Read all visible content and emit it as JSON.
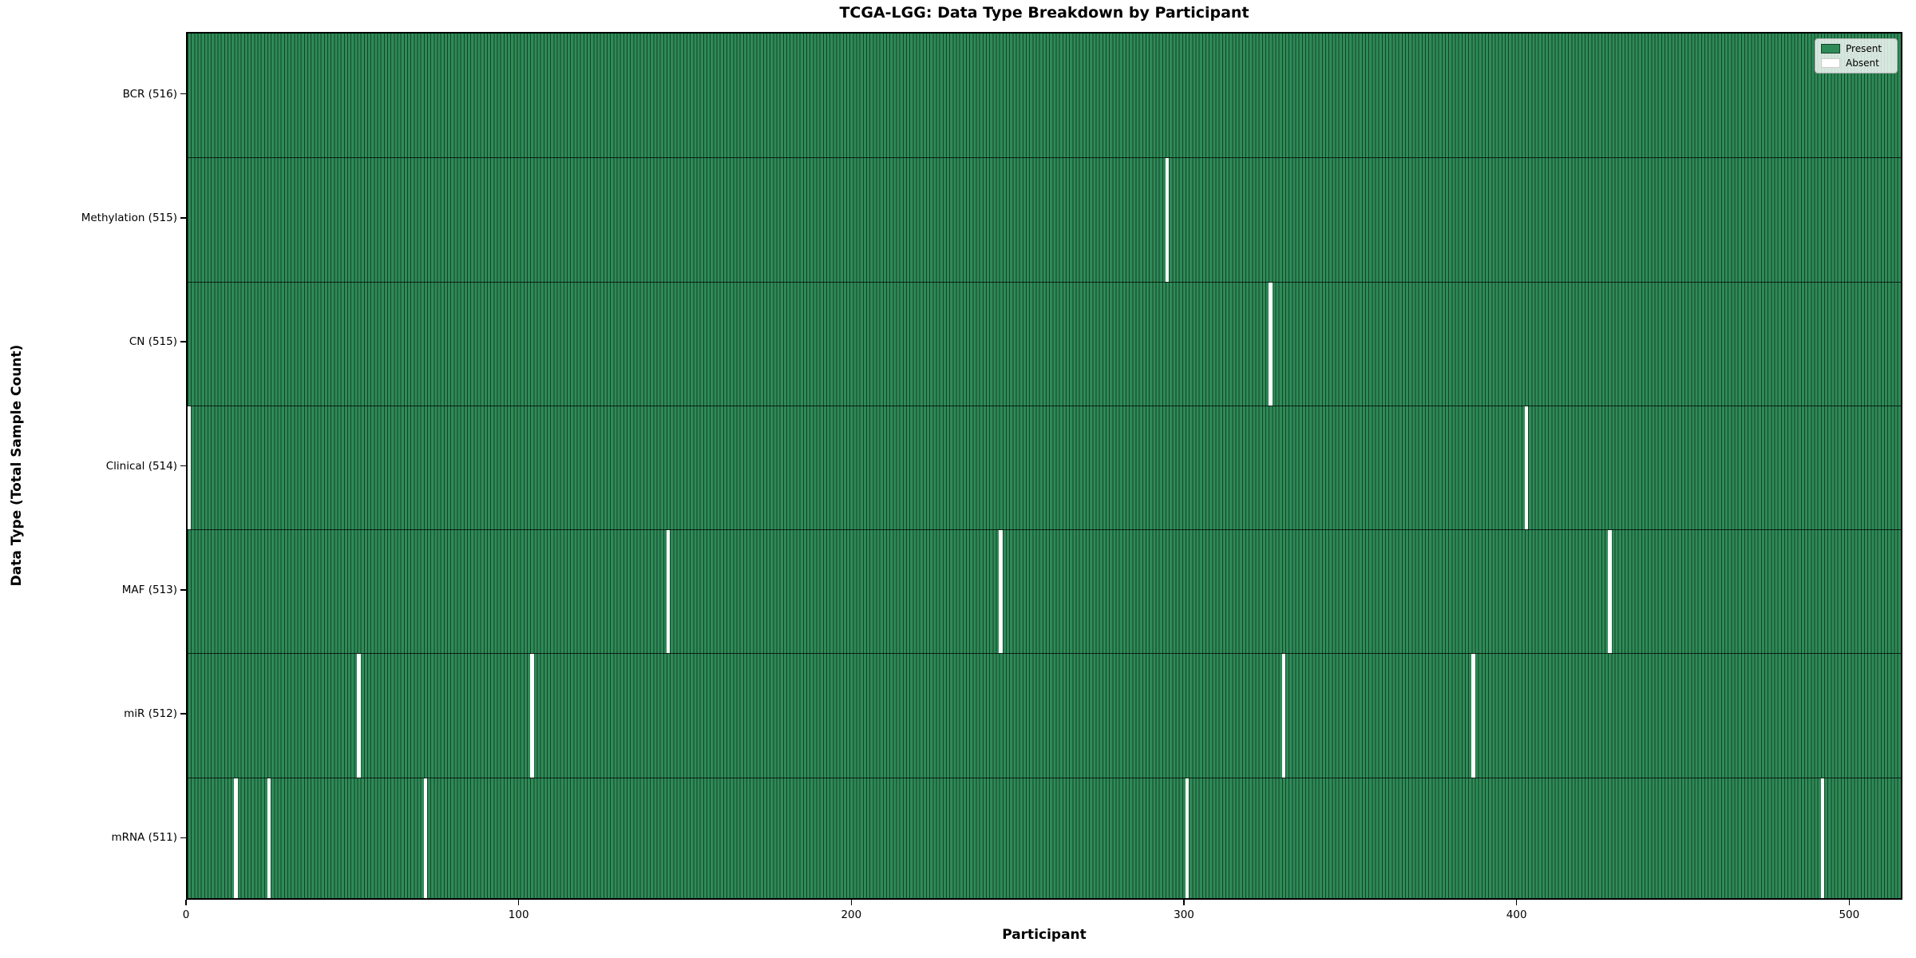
{
  "title": "TCGA-LGG: Data Type Breakdown by Participant",
  "xlabel": "Participant",
  "ylabel": "Data Type (Total Sample Count)",
  "legend": {
    "present_label": "Present",
    "absent_label": "Absent"
  },
  "colors": {
    "present": "#2e8b57",
    "present_edge": "#16422a",
    "absent": "#ffffff",
    "absent_edge": "#cccccc"
  },
  "chart_data": {
    "type": "heatmap",
    "title": "TCGA-LGG: Data Type Breakdown by Participant",
    "xlabel": "Participant",
    "ylabel": "Data Type (Total Sample Count)",
    "legend": [
      "Present",
      "Absent"
    ],
    "legend_position": "upper right",
    "n_participants": 516,
    "x_ticks": [
      0,
      100,
      200,
      300,
      400,
      500
    ],
    "x_range": [
      0,
      516
    ],
    "rows": [
      {
        "label": "BCR (516)",
        "total": 516,
        "absent_participants": []
      },
      {
        "label": "Methylation (515)",
        "total": 515,
        "absent_participants": [
          294
        ]
      },
      {
        "label": "CN (515)",
        "total": 515,
        "absent_participants": [
          325
        ]
      },
      {
        "label": "Clinical (514)",
        "total": 514,
        "absent_participants": [
          0,
          402
        ]
      },
      {
        "label": "MAF (513)",
        "total": 513,
        "absent_participants": [
          144,
          244,
          427
        ]
      },
      {
        "label": "miR (512)",
        "total": 512,
        "absent_participants": [
          51,
          103,
          329,
          386
        ]
      },
      {
        "label": "mRNA (511)",
        "total": 511,
        "absent_participants": [
          14,
          24,
          71,
          300,
          491
        ]
      }
    ]
  }
}
